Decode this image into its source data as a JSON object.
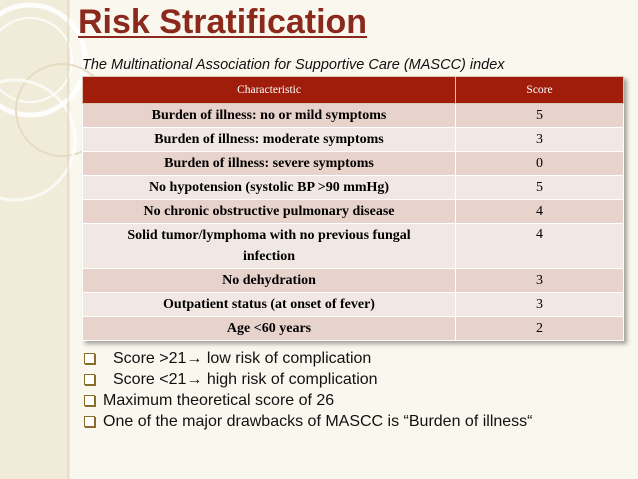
{
  "title": "Risk Stratification",
  "subtitle": "The Multinational Association for Supportive Care (MASCC) index",
  "table": {
    "headers": {
      "characteristic": "Characteristic",
      "score": "Score"
    },
    "rows": [
      {
        "characteristic": "Burden of illness: no or mild symptoms",
        "score": "5"
      },
      {
        "characteristic": "Burden of illness: moderate symptoms",
        "score": "3"
      },
      {
        "characteristic": "Burden of illness: severe symptoms",
        "score": "0"
      },
      {
        "characteristic": "No hypotension (systolic BP >90 mmHg)",
        "score": "5"
      },
      {
        "characteristic": "No chronic obstructive pulmonary disease",
        "score": "4"
      },
      {
        "characteristic_line1": "Solid tumor/lymphoma with no previous fungal",
        "characteristic_line2": "infection",
        "score": "4"
      },
      {
        "characteristic": "No dehydration",
        "score": "3"
      },
      {
        "characteristic": "Outpatient status (at onset of fever)",
        "score": "3"
      },
      {
        "characteristic": "Age <60 years",
        "score": "2"
      }
    ]
  },
  "bullets": [
    "Score >21→ low risk of complication",
    "Score <21→ high risk of complication",
    "Maximum theoretical score of 26",
    "One of the major drawbacks of MASCC is “Burden of illness“"
  ],
  "colors": {
    "title": "#8b2a1c",
    "header_bg": "#a01d0c",
    "row_odd": "#e7d3cb",
    "row_even": "#f2e8e3",
    "background": "#faf7ee"
  }
}
